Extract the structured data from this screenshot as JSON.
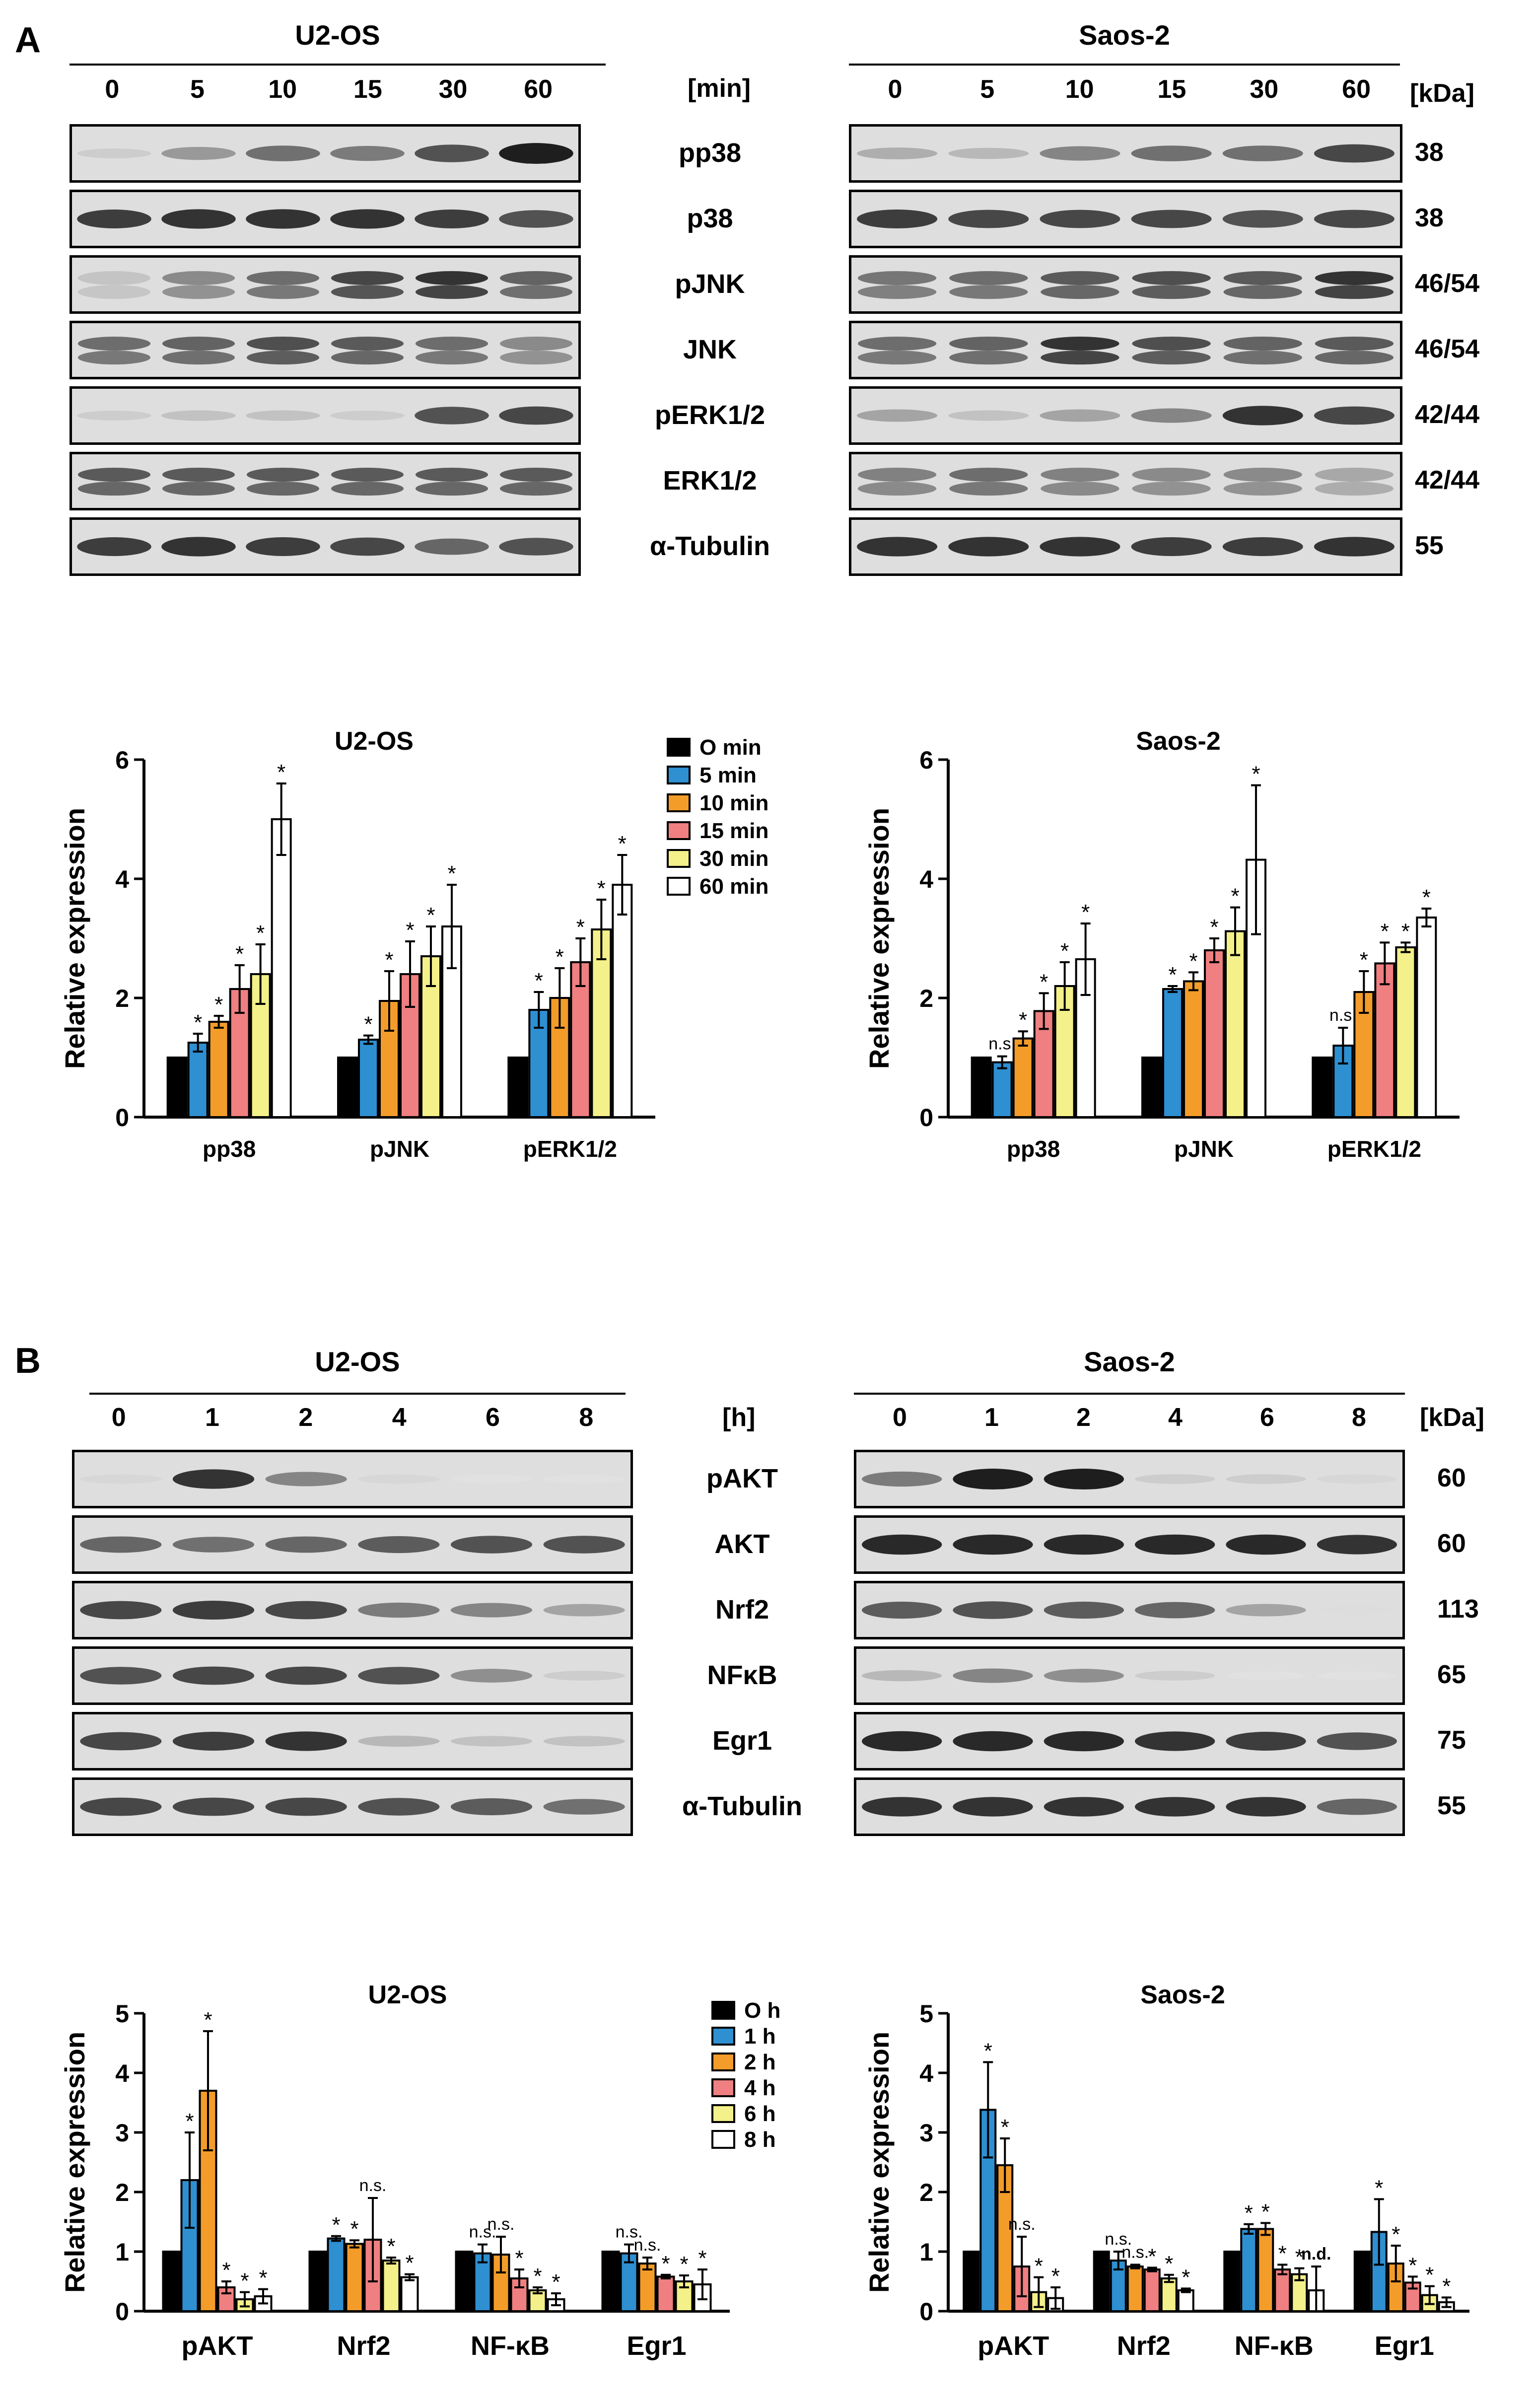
{
  "panels": [
    {
      "letter": "A",
      "cells": [
        {
          "title": "U2-OS",
          "ticks": [
            "0",
            "5",
            "10",
            "15",
            "30",
            "60"
          ]
        },
        {
          "title": "Saos-2",
          "ticks": [
            "0",
            "5",
            "10",
            "15",
            "30",
            "60"
          ]
        }
      ],
      "unit": "[min]",
      "kda_header": "[kDa]",
      "proteins": [
        "pp38",
        "p38",
        "pJNK",
        "JNK",
        "pERK1/2",
        "ERK1/2",
        "α-Tubulin"
      ],
      "kda": [
        "38",
        "38",
        "46/54",
        "46/54",
        "42/44",
        "42/44",
        "55"
      ],
      "band_intensity": {
        "U2-OS": [
          [
            0.1,
            0.35,
            0.55,
            0.5,
            0.7,
            0.95
          ],
          [
            0.8,
            0.85,
            0.85,
            0.85,
            0.8,
            0.7
          ],
          [
            0.15,
            0.45,
            0.6,
            0.8,
            0.9,
            0.65
          ],
          [
            0.6,
            0.65,
            0.75,
            0.7,
            0.6,
            0.45
          ],
          [
            0.1,
            0.15,
            0.15,
            0.1,
            0.7,
            0.75
          ],
          [
            0.7,
            0.7,
            0.7,
            0.7,
            0.7,
            0.7
          ],
          [
            0.8,
            0.85,
            0.8,
            0.75,
            0.6,
            0.7
          ]
        ],
        "Saos-2": [
          [
            0.25,
            0.2,
            0.45,
            0.55,
            0.55,
            0.75
          ],
          [
            0.8,
            0.75,
            0.75,
            0.75,
            0.7,
            0.75
          ],
          [
            0.55,
            0.6,
            0.7,
            0.75,
            0.7,
            0.9
          ],
          [
            0.6,
            0.65,
            0.9,
            0.75,
            0.65,
            0.7
          ],
          [
            0.3,
            0.15,
            0.3,
            0.45,
            0.85,
            0.75
          ],
          [
            0.5,
            0.6,
            0.5,
            0.45,
            0.45,
            0.3
          ],
          [
            0.85,
            0.85,
            0.85,
            0.8,
            0.8,
            0.85
          ]
        ]
      },
      "doublet_rows": [
        2,
        3,
        5
      ]
    },
    {
      "letter": "B",
      "cells": [
        {
          "title": "U2-OS",
          "ticks": [
            "0",
            "1",
            "2",
            "4",
            "6",
            "8"
          ]
        },
        {
          "title": "Saos-2",
          "ticks": [
            "0",
            "1",
            "2",
            "4",
            "6",
            "8"
          ]
        }
      ],
      "unit": "[h]",
      "kda_header": "[kDa]",
      "proteins": [
        "pAKT",
        "AKT",
        "Nrf2",
        "NFκB",
        "Egr1",
        "α-Tubulin"
      ],
      "kda": [
        "60",
        "60",
        "113",
        "65",
        "75",
        "55"
      ],
      "band_intensity": {
        "U2-OS": [
          [
            0.05,
            0.85,
            0.45,
            0.05,
            0.0,
            0.0
          ],
          [
            0.6,
            0.55,
            0.6,
            0.65,
            0.7,
            0.7
          ],
          [
            0.75,
            0.8,
            0.75,
            0.5,
            0.45,
            0.3
          ],
          [
            0.7,
            0.75,
            0.75,
            0.7,
            0.4,
            0.1
          ],
          [
            0.75,
            0.8,
            0.85,
            0.2,
            0.15,
            0.15
          ],
          [
            0.75,
            0.75,
            0.75,
            0.7,
            0.65,
            0.55
          ]
        ],
        "Saos-2": [
          [
            0.5,
            0.95,
            0.95,
            0.1,
            0.1,
            0.05
          ],
          [
            0.9,
            0.9,
            0.9,
            0.9,
            0.9,
            0.85
          ],
          [
            0.65,
            0.7,
            0.65,
            0.6,
            0.3,
            0.02
          ],
          [
            0.2,
            0.45,
            0.4,
            0.1,
            0.0,
            0.0
          ],
          [
            0.9,
            0.9,
            0.9,
            0.85,
            0.8,
            0.7
          ],
          [
            0.85,
            0.85,
            0.85,
            0.85,
            0.85,
            0.6
          ]
        ]
      },
      "doublet_rows": []
    }
  ],
  "chart_data": [
    {
      "type": "bar",
      "title": "U2-OS",
      "ylabel": "Relative expression",
      "xlabel": "",
      "ylim": [
        0,
        6
      ],
      "yticks": [
        "0",
        "2",
        "4",
        "6"
      ],
      "categories": [
        "pp38",
        "pJNK",
        "pERK1/2"
      ],
      "legend_placement": "top-right",
      "series": [
        {
          "name": "O min",
          "color": "#000000",
          "values": [
            1,
            1,
            1
          ],
          "errors": [
            0,
            0,
            0
          ],
          "marks": [
            "",
            "",
            ""
          ]
        },
        {
          "name": "5 min",
          "color": "#2e8fd1",
          "values": [
            1.25,
            1.3,
            1.8
          ],
          "errors": [
            0.15,
            0.07,
            0.3
          ],
          "marks": [
            "*",
            "*",
            "*"
          ]
        },
        {
          "name": "10 min",
          "color": "#f39c2a",
          "values": [
            1.6,
            1.95,
            2.0
          ],
          "errors": [
            0.1,
            0.5,
            0.5
          ],
          "marks": [
            "*",
            "*",
            "*"
          ]
        },
        {
          "name": "15 min",
          "color": "#ef7f80",
          "values": [
            2.15,
            2.4,
            2.6
          ],
          "errors": [
            0.4,
            0.55,
            0.4
          ],
          "marks": [
            "*",
            "*",
            "*"
          ]
        },
        {
          "name": "30 min",
          "color": "#f4f08a",
          "values": [
            2.4,
            2.7,
            3.15
          ],
          "errors": [
            0.5,
            0.5,
            0.5
          ],
          "marks": [
            "*",
            "*",
            "*"
          ]
        },
        {
          "name": "60 min",
          "color": "#ffffff",
          "values": [
            5.0,
            3.2,
            3.9
          ],
          "errors": [
            0.6,
            0.7,
            0.5
          ],
          "marks": [
            "*",
            "*",
            "*"
          ]
        }
      ]
    },
    {
      "type": "bar",
      "title": "Saos-2",
      "ylabel": "Relative expression",
      "xlabel": "",
      "ylim": [
        0,
        6
      ],
      "yticks": [
        "0",
        "2",
        "4",
        "6"
      ],
      "categories": [
        "pp38",
        "pJNK",
        "pERK1/2"
      ],
      "series": [
        {
          "name": "O min",
          "color": "#000000",
          "values": [
            1,
            1,
            1
          ],
          "errors": [
            0,
            0,
            0
          ],
          "marks": [
            "",
            "",
            ""
          ]
        },
        {
          "name": "5 min",
          "color": "#2e8fd1",
          "values": [
            0.92,
            2.15,
            1.2
          ],
          "errors": [
            0.1,
            0.05,
            0.3
          ],
          "marks": [
            "n.s.",
            "*",
            "n.s."
          ]
        },
        {
          "name": "10 min",
          "color": "#f39c2a",
          "values": [
            1.32,
            2.28,
            2.1
          ],
          "errors": [
            0.12,
            0.15,
            0.35
          ],
          "marks": [
            "*",
            "*",
            "*"
          ]
        },
        {
          "name": "15 min",
          "color": "#ef7f80",
          "values": [
            1.78,
            2.8,
            2.58
          ],
          "errors": [
            0.3,
            0.2,
            0.35
          ],
          "marks": [
            "*",
            "*",
            "*"
          ]
        },
        {
          "name": "30 min",
          "color": "#f4f08a",
          "values": [
            2.2,
            3.12,
            2.85
          ],
          "errors": [
            0.4,
            0.4,
            0.08
          ],
          "marks": [
            "*",
            "*",
            "*"
          ]
        },
        {
          "name": "60 min",
          "color": "#ffffff",
          "values": [
            2.65,
            4.32,
            3.35
          ],
          "errors": [
            0.6,
            1.25,
            0.15
          ],
          "marks": [
            "*",
            "*",
            "*"
          ]
        }
      ]
    },
    {
      "type": "bar",
      "title": "U2-OS",
      "ylabel": "Relative expression",
      "xlabel": "",
      "ylim": [
        0,
        5
      ],
      "yticks": [
        "0",
        "1",
        "2",
        "3",
        "4",
        "5"
      ],
      "categories": [
        "pAKT",
        "Nrf2",
        "NF-κB",
        "Egr1"
      ],
      "legend_placement": "top-right",
      "series": [
        {
          "name": "O h",
          "color": "#000000",
          "values": [
            1,
            1,
            1,
            1
          ],
          "errors": [
            0,
            0,
            0,
            0
          ],
          "marks": [
            "",
            "",
            "",
            ""
          ]
        },
        {
          "name": "1 h",
          "color": "#2e8fd1",
          "values": [
            2.2,
            1.22,
            0.97,
            0.97
          ],
          "errors": [
            0.8,
            0.04,
            0.15,
            0.15
          ],
          "marks": [
            "*",
            "*",
            "n.s.",
            "n.s."
          ]
        },
        {
          "name": "2 h",
          "color": "#f39c2a",
          "values": [
            3.7,
            1.13,
            0.95,
            0.8
          ],
          "errors": [
            1.0,
            0.06,
            0.3,
            0.1
          ],
          "marks": [
            "*",
            "*",
            "n.s.",
            "n.s."
          ]
        },
        {
          "name": "4 h",
          "color": "#ef7f80",
          "values": [
            0.4,
            1.2,
            0.55,
            0.58
          ],
          "errors": [
            0.1,
            0.7,
            0.15,
            0.03
          ],
          "marks": [
            "*",
            "n.s.",
            "*",
            "*"
          ]
        },
        {
          "name": "6 h",
          "color": "#f4f08a",
          "values": [
            0.2,
            0.85,
            0.35,
            0.5
          ],
          "errors": [
            0.12,
            0.05,
            0.05,
            0.1
          ],
          "marks": [
            "*",
            "*",
            "*",
            "*"
          ]
        },
        {
          "name": "8 h",
          "color": "#ffffff",
          "values": [
            0.25,
            0.57,
            0.2,
            0.45
          ],
          "errors": [
            0.12,
            0.05,
            0.1,
            0.25
          ],
          "marks": [
            "*",
            "*",
            "*",
            "*"
          ]
        }
      ]
    },
    {
      "type": "bar",
      "title": "Saos-2",
      "ylabel": "Relative expression",
      "xlabel": "",
      "ylim": [
        0,
        5
      ],
      "yticks": [
        "0",
        "1",
        "2",
        "3",
        "4",
        "5"
      ],
      "categories": [
        "pAKT",
        "Nrf2",
        "NF-κB",
        "Egr1"
      ],
      "series": [
        {
          "name": "O h",
          "color": "#000000",
          "values": [
            1,
            1,
            1,
            1
          ],
          "errors": [
            0,
            0,
            0,
            0
          ],
          "marks": [
            "",
            "",
            "",
            ""
          ]
        },
        {
          "name": "1 h",
          "color": "#2e8fd1",
          "values": [
            3.38,
            0.85,
            1.38,
            1.33
          ],
          "errors": [
            0.8,
            0.15,
            0.08,
            0.55
          ],
          "marks": [
            "*",
            "n.s.",
            "*",
            "*"
          ]
        },
        {
          "name": "2 h",
          "color": "#f39c2a",
          "values": [
            2.45,
            0.75,
            1.38,
            0.8
          ],
          "errors": [
            0.45,
            0.03,
            0.1,
            0.3
          ],
          "marks": [
            "*",
            "n.s.",
            "*",
            "*"
          ]
        },
        {
          "name": "4 h",
          "color": "#ef7f80",
          "values": [
            0.75,
            0.7,
            0.7,
            0.48
          ],
          "errors": [
            0.5,
            0.03,
            0.08,
            0.1
          ],
          "marks": [
            "n.s.",
            "*",
            "*",
            "*"
          ]
        },
        {
          "name": "6 h",
          "color": "#f4f08a",
          "values": [
            0.32,
            0.55,
            0.62,
            0.27
          ],
          "errors": [
            0.25,
            0.06,
            0.1,
            0.15
          ],
          "marks": [
            "*",
            "*",
            "*",
            "*"
          ]
        },
        {
          "name": "8 h",
          "color": "#ffffff",
          "values": [
            0.22,
            0.35,
            0.35,
            0.15
          ],
          "errors": [
            0.18,
            0.03,
            0.4,
            0.08
          ],
          "marks": [
            "*",
            "*",
            "n.d.",
            "*"
          ]
        }
      ]
    }
  ]
}
